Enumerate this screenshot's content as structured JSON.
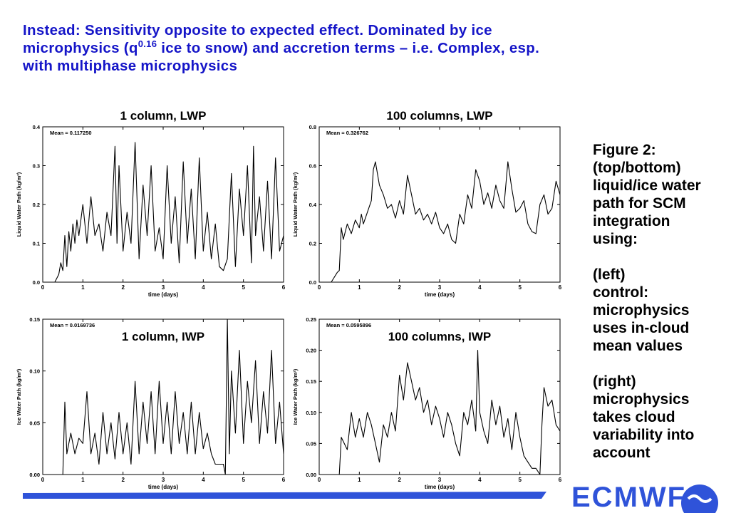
{
  "headline": {
    "line1": "Instead: Sensitivity opposite to expected effect. Dominated by ice",
    "line2_pre": "microphysics (q",
    "line2_sup": "0.16",
    "line2_post": " ice to snow) and accretion terms – i.e. Complex, esp.",
    "line3": "with multiphase microphysics"
  },
  "caption": {
    "para1": [
      "Figure 2:",
      "(top/bottom)",
      "liquid/ice water",
      "path for SCM",
      "integration",
      "using:"
    ],
    "para2": [
      "(left)",
      "control:",
      "microphysics",
      "uses in-cloud",
      "mean values"
    ],
    "para3": [
      "(right)",
      "microphysics",
      "takes cloud",
      "variability into",
      "account"
    ]
  },
  "footer": {
    "logo_text": "ECMWF",
    "colors": {
      "bar": "#2f53d9",
      "logo": "#2f53d9"
    }
  },
  "colors": {
    "headline": "#1515c8",
    "caption": "#000000",
    "plot_line": "#000000"
  },
  "chart_data": [
    {
      "type": "line",
      "title": "1 column, LWP",
      "xlabel": "time (days)",
      "ylabel": "Liquid Water Path (kg/m²)",
      "annotation": "Mean = 0.117250",
      "xlim": [
        0,
        6
      ],
      "ylim": [
        0,
        0.4
      ],
      "xticks": [
        0,
        1,
        2,
        3,
        4,
        5,
        6
      ],
      "yticks": [
        0.0,
        0.1,
        0.2,
        0.3,
        0.4
      ],
      "ytick_labels": [
        "0.0",
        "0.1",
        "0.2",
        "0.3",
        "0.4"
      ],
      "series": [
        {
          "x": [
            0.0,
            0.3,
            0.4,
            0.45,
            0.5,
            0.55,
            0.6,
            0.65,
            0.7,
            0.75,
            0.8,
            0.85,
            0.9,
            1.0,
            1.1,
            1.2,
            1.3,
            1.4,
            1.5,
            1.6,
            1.7,
            1.8,
            1.85,
            1.9,
            2.0,
            2.1,
            2.2,
            2.3,
            2.4,
            2.5,
            2.6,
            2.7,
            2.8,
            2.9,
            3.0,
            3.1,
            3.2,
            3.3,
            3.4,
            3.5,
            3.6,
            3.7,
            3.8,
            3.9,
            4.0,
            4.1,
            4.2,
            4.3,
            4.4,
            4.5,
            4.6,
            4.7,
            4.8,
            4.9,
            5.0,
            5.1,
            5.2,
            5.25,
            5.3,
            5.4,
            5.5,
            5.6,
            5.7,
            5.8,
            5.9,
            6.0
          ],
          "y": [
            0.0,
            0.0,
            0.02,
            0.05,
            0.03,
            0.12,
            0.04,
            0.13,
            0.08,
            0.15,
            0.1,
            0.16,
            0.12,
            0.2,
            0.1,
            0.22,
            0.12,
            0.15,
            0.08,
            0.18,
            0.12,
            0.35,
            0.1,
            0.3,
            0.08,
            0.18,
            0.1,
            0.36,
            0.06,
            0.25,
            0.12,
            0.3,
            0.08,
            0.14,
            0.06,
            0.3,
            0.1,
            0.22,
            0.05,
            0.31,
            0.1,
            0.24,
            0.06,
            0.32,
            0.08,
            0.18,
            0.06,
            0.15,
            0.04,
            0.03,
            0.06,
            0.28,
            0.04,
            0.24,
            0.12,
            0.3,
            0.05,
            0.35,
            0.12,
            0.22,
            0.08,
            0.26,
            0.06,
            0.32,
            0.08,
            0.12
          ]
        }
      ]
    },
    {
      "type": "line",
      "title": "100 columns, LWP",
      "xlabel": "time (days)",
      "ylabel": "Liquid Water Path (kg/m²)",
      "annotation": "Mean = 0.326762",
      "xlim": [
        0,
        6
      ],
      "ylim": [
        0,
        0.8
      ],
      "xticks": [
        0,
        1,
        2,
        3,
        4,
        5,
        6
      ],
      "yticks": [
        0.0,
        0.2,
        0.4,
        0.6,
        0.8
      ],
      "ytick_labels": [
        "0.0",
        "0.2",
        "0.4",
        "0.6",
        "0.8"
      ],
      "series": [
        {
          "x": [
            0.0,
            0.3,
            0.45,
            0.5,
            0.55,
            0.6,
            0.7,
            0.8,
            0.9,
            1.0,
            1.05,
            1.1,
            1.2,
            1.3,
            1.35,
            1.4,
            1.5,
            1.6,
            1.7,
            1.8,
            1.9,
            2.0,
            2.1,
            2.2,
            2.3,
            2.4,
            2.5,
            2.6,
            2.7,
            2.8,
            2.9,
            3.0,
            3.1,
            3.2,
            3.3,
            3.4,
            3.5,
            3.6,
            3.7,
            3.8,
            3.9,
            4.0,
            4.1,
            4.2,
            4.3,
            4.4,
            4.5,
            4.6,
            4.7,
            4.8,
            4.9,
            5.0,
            5.1,
            5.2,
            5.3,
            5.4,
            5.5,
            5.6,
            5.7,
            5.8,
            5.9,
            6.0
          ],
          "y": [
            0.0,
            0.0,
            0.05,
            0.06,
            0.28,
            0.22,
            0.3,
            0.25,
            0.32,
            0.28,
            0.35,
            0.3,
            0.36,
            0.42,
            0.58,
            0.62,
            0.5,
            0.45,
            0.38,
            0.4,
            0.33,
            0.42,
            0.35,
            0.55,
            0.45,
            0.35,
            0.38,
            0.32,
            0.35,
            0.3,
            0.36,
            0.28,
            0.25,
            0.3,
            0.22,
            0.2,
            0.35,
            0.3,
            0.45,
            0.38,
            0.58,
            0.52,
            0.4,
            0.46,
            0.38,
            0.5,
            0.42,
            0.38,
            0.62,
            0.48,
            0.36,
            0.38,
            0.42,
            0.3,
            0.26,
            0.25,
            0.4,
            0.45,
            0.35,
            0.38,
            0.52,
            0.45
          ]
        }
      ]
    },
    {
      "type": "line",
      "title": "1 column, IWP",
      "xlabel": "time (days)",
      "ylabel": "Ice Water Path (kg/m²)",
      "annotation": "Mean = 0.0169736",
      "xlim": [
        0,
        6
      ],
      "ylim": [
        0,
        0.15
      ],
      "xticks": [
        0,
        1,
        2,
        3,
        4,
        5,
        6
      ],
      "yticks": [
        0.0,
        0.05,
        0.1,
        0.15
      ],
      "ytick_labels": [
        "0.00",
        "0.05",
        "0.10",
        "0.15"
      ],
      "series": [
        {
          "x": [
            0.0,
            0.5,
            0.55,
            0.6,
            0.7,
            0.8,
            0.9,
            1.0,
            1.1,
            1.2,
            1.3,
            1.4,
            1.5,
            1.6,
            1.7,
            1.8,
            1.9,
            2.0,
            2.1,
            2.2,
            2.3,
            2.4,
            2.5,
            2.6,
            2.7,
            2.8,
            2.9,
            3.0,
            3.1,
            3.2,
            3.3,
            3.4,
            3.5,
            3.6,
            3.7,
            3.8,
            3.9,
            4.0,
            4.1,
            4.2,
            4.3,
            4.4,
            4.5,
            4.55,
            4.6,
            4.65,
            4.7,
            4.8,
            4.9,
            5.0,
            5.1,
            5.2,
            5.3,
            5.4,
            5.5,
            5.6,
            5.7,
            5.8,
            5.9,
            6.0
          ],
          "y": [
            0.0,
            0.0,
            0.07,
            0.02,
            0.04,
            0.02,
            0.035,
            0.03,
            0.08,
            0.02,
            0.04,
            0.01,
            0.06,
            0.02,
            0.05,
            0.015,
            0.06,
            0.02,
            0.05,
            0.01,
            0.09,
            0.02,
            0.07,
            0.03,
            0.08,
            0.02,
            0.09,
            0.03,
            0.07,
            0.02,
            0.08,
            0.03,
            0.06,
            0.02,
            0.07,
            0.02,
            0.06,
            0.025,
            0.04,
            0.02,
            0.01,
            0.01,
            0.01,
            0.0,
            0.15,
            0.02,
            0.1,
            0.04,
            0.12,
            0.03,
            0.09,
            0.05,
            0.11,
            0.03,
            0.08,
            0.04,
            0.12,
            0.03,
            0.07,
            0.02
          ]
        }
      ]
    },
    {
      "type": "line",
      "title": "100 columns, IWP",
      "xlabel": "time (days)",
      "ylabel": "Ice Water Path (kg/m²)",
      "annotation": "Mean = 0.0595896",
      "xlim": [
        0,
        6
      ],
      "ylim": [
        0,
        0.25
      ],
      "xticks": [
        0,
        1,
        2,
        3,
        4,
        5,
        6
      ],
      "yticks": [
        0.0,
        0.05,
        0.1,
        0.15,
        0.2,
        0.25
      ],
      "ytick_labels": [
        "0.00",
        "0.05",
        "0.10",
        "0.15",
        "0.20",
        "0.25"
      ],
      "series": [
        {
          "x": [
            0.0,
            0.5,
            0.55,
            0.7,
            0.8,
            0.9,
            1.0,
            1.1,
            1.2,
            1.3,
            1.4,
            1.5,
            1.6,
            1.7,
            1.8,
            1.9,
            2.0,
            2.1,
            2.2,
            2.3,
            2.4,
            2.5,
            2.6,
            2.7,
            2.8,
            2.9,
            3.0,
            3.1,
            3.2,
            3.3,
            3.4,
            3.5,
            3.6,
            3.7,
            3.8,
            3.9,
            3.95,
            4.0,
            4.1,
            4.2,
            4.3,
            4.4,
            4.5,
            4.6,
            4.7,
            4.8,
            4.9,
            5.0,
            5.1,
            5.2,
            5.3,
            5.4,
            5.5,
            5.55,
            5.6,
            5.7,
            5.8,
            5.9,
            6.0
          ],
          "y": [
            0.0,
            0.0,
            0.06,
            0.04,
            0.1,
            0.06,
            0.09,
            0.06,
            0.1,
            0.08,
            0.05,
            0.02,
            0.08,
            0.06,
            0.1,
            0.07,
            0.16,
            0.12,
            0.18,
            0.15,
            0.12,
            0.14,
            0.1,
            0.12,
            0.08,
            0.11,
            0.09,
            0.06,
            0.1,
            0.08,
            0.05,
            0.03,
            0.1,
            0.08,
            0.12,
            0.07,
            0.2,
            0.1,
            0.07,
            0.05,
            0.12,
            0.08,
            0.11,
            0.06,
            0.09,
            0.04,
            0.1,
            0.06,
            0.03,
            0.02,
            0.01,
            0.01,
            0.0,
            0.08,
            0.14,
            0.11,
            0.12,
            0.08,
            0.07
          ]
        }
      ]
    }
  ]
}
